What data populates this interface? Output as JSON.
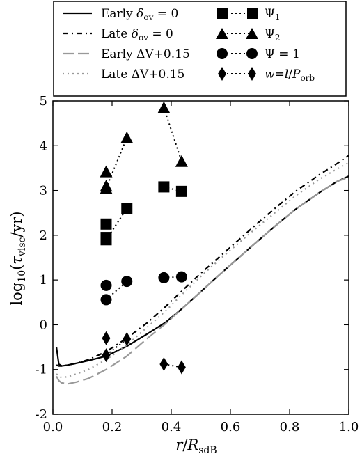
{
  "chart_data": {
    "type": "line",
    "xlabel": "r/R_sdB",
    "ylabel": "log10(τ_visc/yr)",
    "xlim": [
      0.0,
      1.0
    ],
    "ylim": [
      -2,
      5
    ],
    "x_ticks": [
      "0.0",
      "0.2",
      "0.4",
      "0.6",
      "0.8",
      "1.0"
    ],
    "y_ticks": [
      "-2",
      "-1",
      "0",
      "1",
      "2",
      "3",
      "4",
      "5"
    ],
    "grid": false,
    "legend_position": "top",
    "series": [
      {
        "name": "Early δov = 0",
        "style": "solid",
        "color": "#000000",
        "x": [
          0.012,
          0.02,
          0.03,
          0.05,
          0.08,
          0.12,
          0.18,
          0.25,
          0.32,
          0.38,
          0.44,
          0.5,
          0.56,
          0.62,
          0.68,
          0.75,
          0.82,
          0.9,
          0.96,
          1.0
        ],
        "y": [
          -0.5,
          -0.88,
          -0.92,
          -0.9,
          -0.86,
          -0.8,
          -0.7,
          -0.48,
          -0.2,
          0.05,
          0.38,
          0.74,
          1.1,
          1.45,
          1.8,
          2.2,
          2.58,
          2.95,
          3.2,
          3.32
        ]
      },
      {
        "name": "Late δov = 0",
        "style": "dashdot",
        "color": "#000000",
        "x": [
          0.012,
          0.02,
          0.03,
          0.05,
          0.08,
          0.12,
          0.18,
          0.25,
          0.32,
          0.38,
          0.44,
          0.5,
          0.56,
          0.62,
          0.68,
          0.75,
          0.82,
          0.9,
          0.96,
          1.0
        ],
        "y": [
          -0.9,
          -0.92,
          -0.92,
          -0.9,
          -0.86,
          -0.78,
          -0.6,
          -0.3,
          0.05,
          0.4,
          0.78,
          1.15,
          1.5,
          1.85,
          2.2,
          2.6,
          2.98,
          3.35,
          3.6,
          3.78
        ]
      },
      {
        "name": "Early ΔV+0.15",
        "style": "longdash",
        "color": "#999999",
        "x": [
          0.012,
          0.02,
          0.03,
          0.05,
          0.08,
          0.12,
          0.18,
          0.25,
          0.32,
          0.38,
          0.44,
          0.5,
          0.56,
          0.62,
          0.68,
          0.75,
          0.82,
          0.9,
          0.96,
          1.0
        ],
        "y": [
          -1.15,
          -1.25,
          -1.3,
          -1.32,
          -1.28,
          -1.2,
          -1.0,
          -0.7,
          -0.3,
          0.02,
          0.38,
          0.74,
          1.1,
          1.45,
          1.8,
          2.2,
          2.58,
          2.95,
          3.2,
          3.3
        ]
      },
      {
        "name": "Late ΔV+0.15",
        "style": "dotted",
        "color": "#999999",
        "x": [
          0.012,
          0.02,
          0.03,
          0.05,
          0.08,
          0.12,
          0.18,
          0.25,
          0.32,
          0.38,
          0.44,
          0.5,
          0.56,
          0.62,
          0.68,
          0.75,
          0.82,
          0.9,
          0.96,
          1.0
        ],
        "y": [
          -1.1,
          -1.15,
          -1.18,
          -1.16,
          -1.1,
          -1.0,
          -0.78,
          -0.45,
          -0.05,
          0.3,
          0.7,
          1.08,
          1.44,
          1.78,
          2.12,
          2.5,
          2.88,
          3.25,
          3.48,
          3.62
        ]
      }
    ],
    "marker_series": [
      {
        "name": "Ψ1",
        "marker": "square",
        "x": [
          0.18,
          0.18,
          0.18,
          0.25,
          0.375,
          0.435
        ],
        "y": [
          2.25,
          1.9,
          1.95,
          2.6,
          3.08,
          2.98
        ],
        "segments": [
          [
            1,
            3
          ],
          [
            4,
            5
          ]
        ]
      },
      {
        "name": "Ψ2",
        "marker": "triangle",
        "x": [
          0.18,
          0.18,
          0.18,
          0.25,
          0.375,
          0.435
        ],
        "y": [
          3.42,
          3.05,
          3.1,
          4.18,
          4.85,
          3.65
        ],
        "segments": [
          [
            1,
            3
          ],
          [
            4,
            5
          ]
        ]
      },
      {
        "name": "Ψ=1",
        "marker": "circle",
        "x": [
          0.18,
          0.18,
          0.25,
          0.375,
          0.435
        ],
        "y": [
          0.88,
          0.56,
          0.97,
          1.05,
          1.07
        ],
        "segments": [
          [
            1,
            2
          ],
          [
            3,
            4
          ]
        ]
      },
      {
        "name": "w=l/Porb",
        "marker": "diamond",
        "x": [
          0.18,
          0.18,
          0.25,
          0.375,
          0.435
        ],
        "y": [
          -0.3,
          -0.68,
          -0.32,
          -0.88,
          -0.95
        ],
        "segments": [
          [
            1,
            2
          ],
          [
            3,
            4
          ]
        ]
      }
    ]
  }
}
